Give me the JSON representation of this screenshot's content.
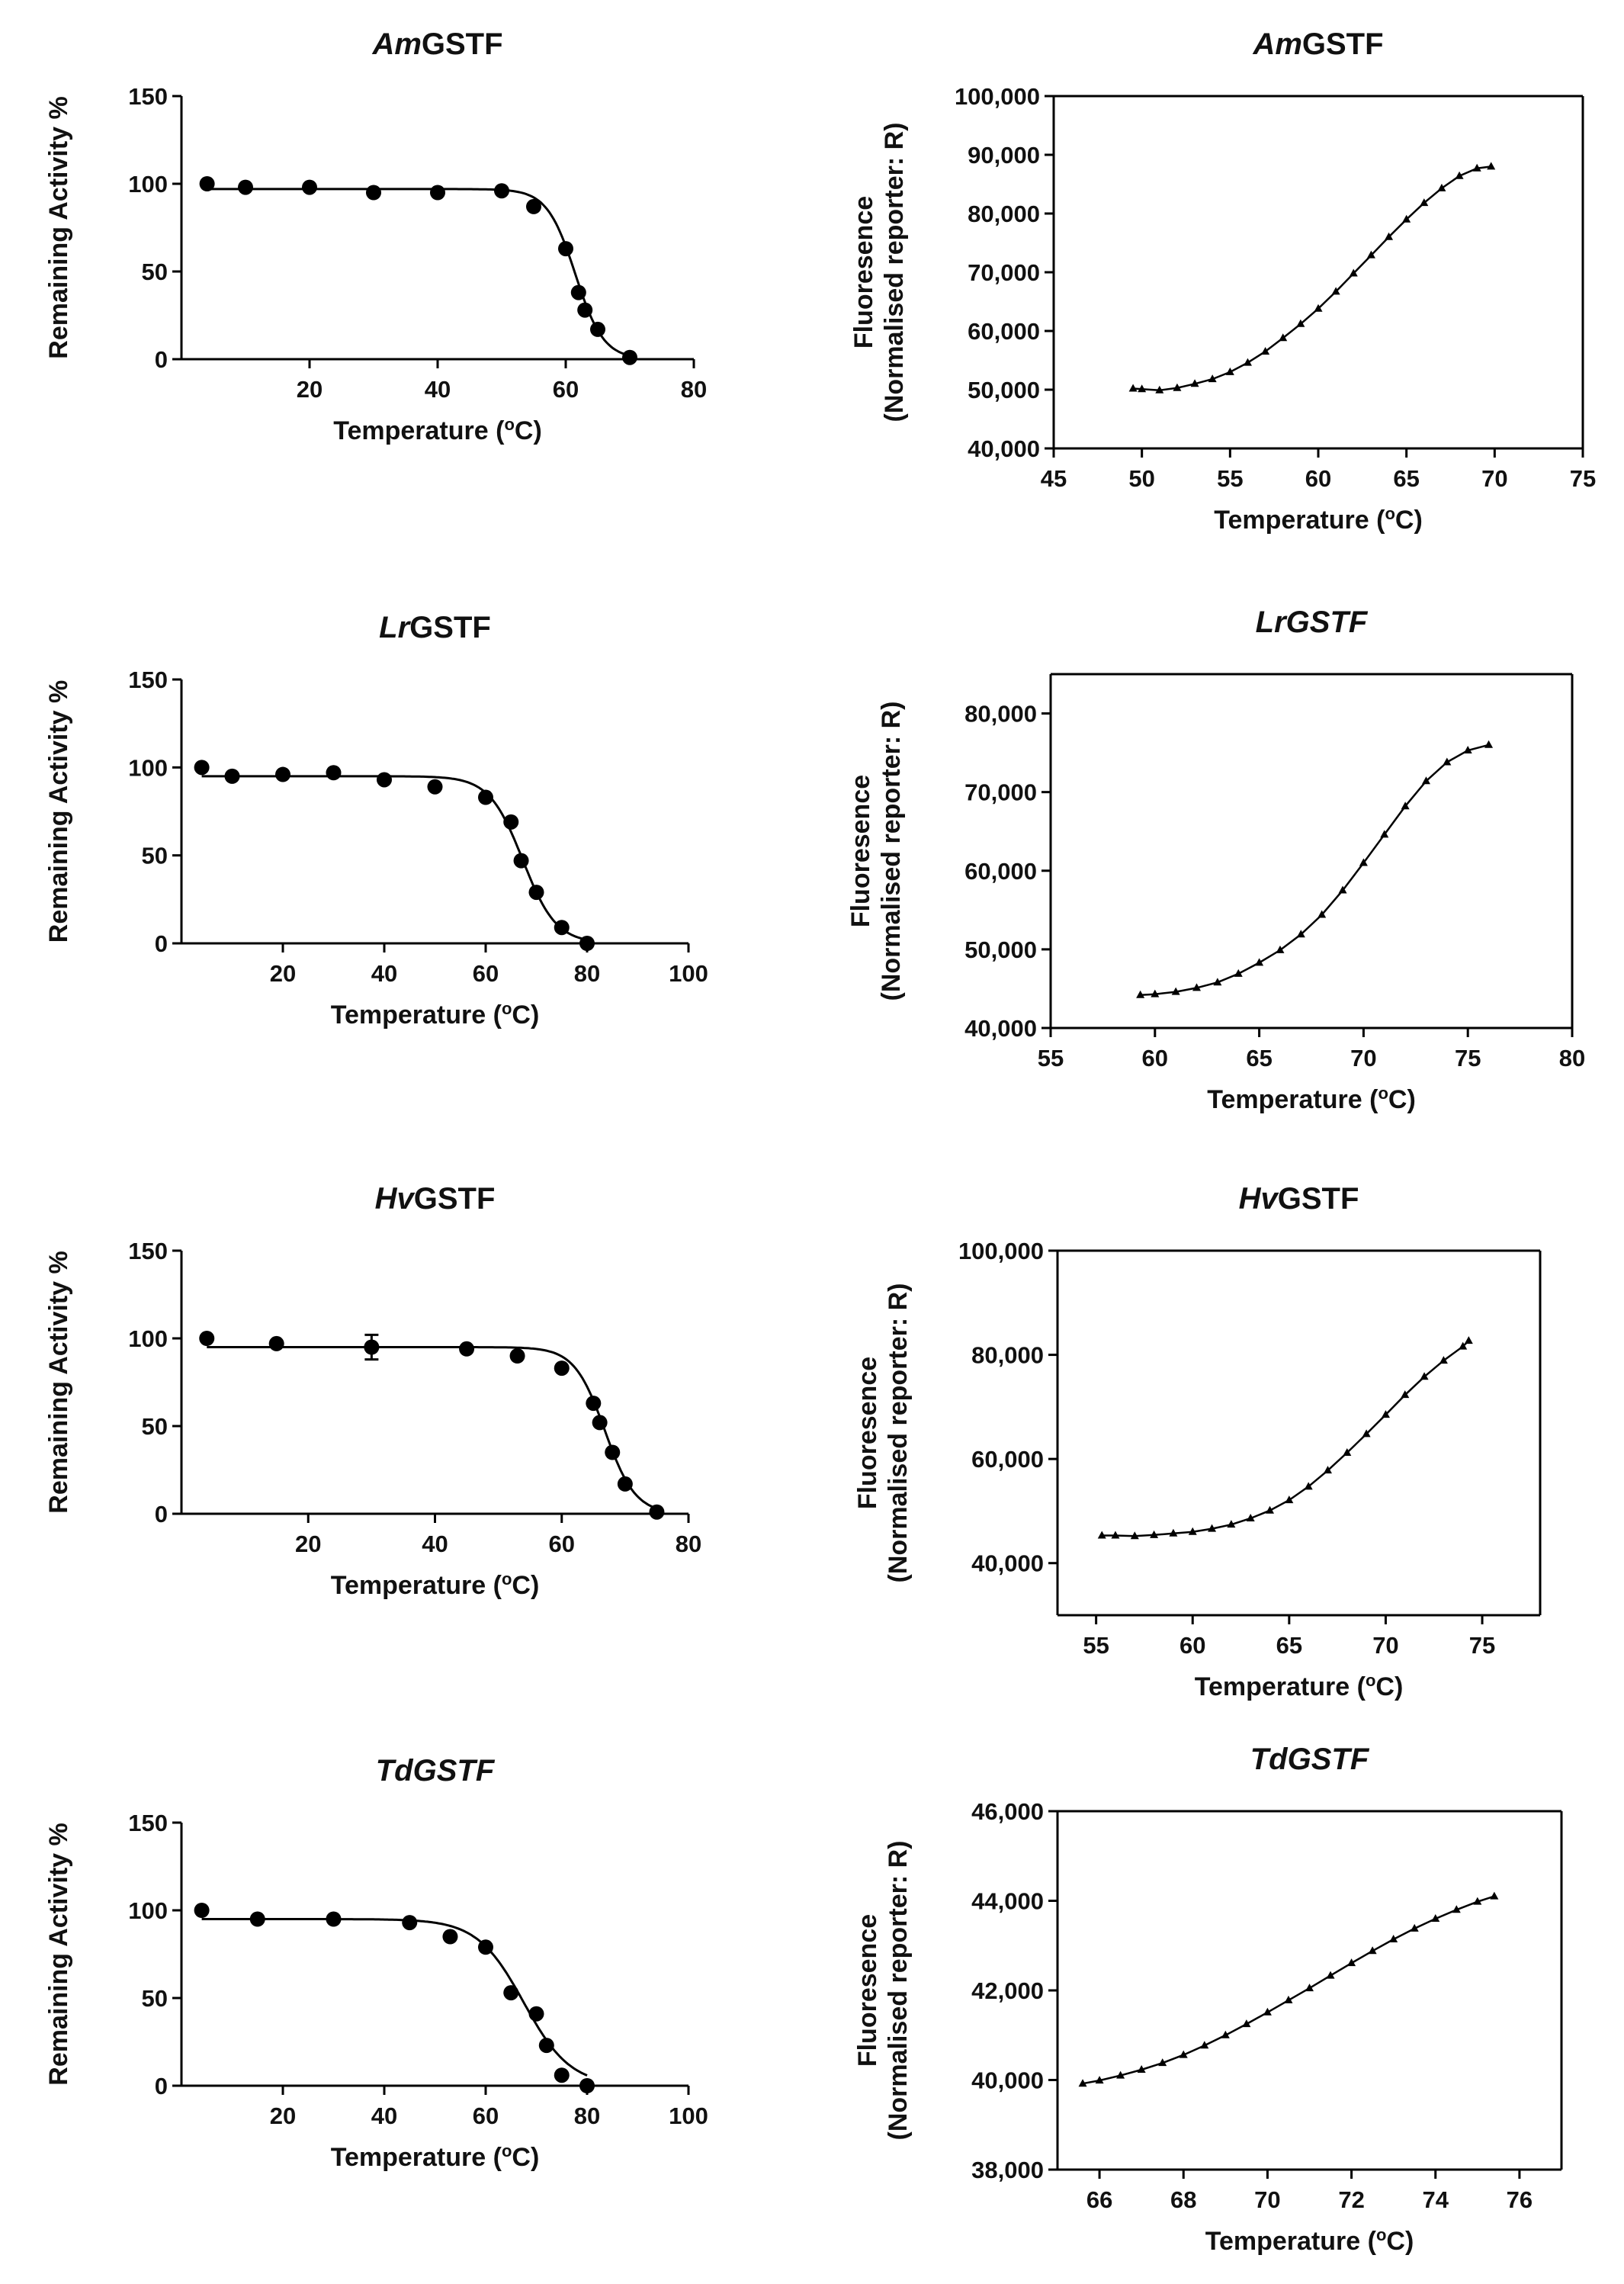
{
  "chart_data": [
    {
      "type": "scatter",
      "title": {
        "prefix": "Am",
        "suffix": "GSTF",
        "italic_suffix": false
      },
      "xlabel": "Temperature (°C)",
      "ylabel": "Remaining Activity %",
      "xlim": [
        0,
        80
      ],
      "ylim": [
        0,
        150
      ],
      "xticks": [
        20,
        40,
        60,
        80
      ],
      "yticks": [
        0,
        50,
        100,
        150
      ],
      "points": {
        "x": [
          4,
          10,
          20,
          30,
          40,
          50,
          55,
          60,
          62,
          63,
          65,
          70
        ],
        "y": [
          100,
          98,
          98,
          95,
          95,
          96,
          87,
          63,
          38,
          28,
          17,
          1
        ]
      },
      "fit": {
        "top": 97,
        "bottom": 0,
        "tm": 61.5,
        "slope": 2.2
      }
    },
    {
      "type": "line",
      "title": {
        "prefix": "Am",
        "suffix": "GSTF",
        "italic_suffix": false
      },
      "xlabel": "Temperature (°C)",
      "ylabel_lines": [
        "Fluoresence",
        "(Normalised reporter: R)"
      ],
      "xlim": [
        45,
        75
      ],
      "ylim": [
        40000,
        100000
      ],
      "xticks": [
        45,
        50,
        55,
        60,
        65,
        70,
        75
      ],
      "yticks": [
        40000,
        50000,
        60000,
        70000,
        80000,
        90000,
        100000
      ],
      "ytick_labels": [
        "40,000",
        "50,000",
        "60,000",
        "70,000",
        "80,000",
        "90,000",
        "100,000"
      ],
      "series": {
        "x": [
          49.5,
          50,
          51,
          52,
          53,
          54,
          55,
          56,
          57,
          58,
          59,
          60,
          61,
          62,
          63,
          64,
          65,
          66,
          67,
          68,
          69,
          69.8
        ],
        "y": [
          50200,
          50100,
          49900,
          50300,
          51000,
          51800,
          53000,
          54600,
          56500,
          58800,
          61200,
          63800,
          66700,
          69800,
          72900,
          76000,
          79000,
          81800,
          84300,
          86400,
          87700,
          88000
        ]
      }
    },
    {
      "type": "scatter",
      "title": {
        "prefix": "Lr",
        "suffix": "GSTF",
        "italic_suffix": false
      },
      "xlabel": "Temperature (°C)",
      "ylabel": "Remaining Activity %",
      "xlim": [
        0,
        100
      ],
      "ylim": [
        0,
        150
      ],
      "xticks": [
        20,
        40,
        60,
        80,
        100
      ],
      "yticks": [
        0,
        50,
        100,
        150
      ],
      "points": {
        "x": [
          4,
          10,
          20,
          30,
          40,
          50,
          60,
          65,
          67,
          70,
          75,
          80
        ],
        "y": [
          100,
          95,
          96,
          97,
          93,
          89,
          83,
          69,
          47,
          29,
          9,
          0
        ]
      },
      "fit": {
        "top": 95,
        "bottom": 0,
        "tm": 67.3,
        "slope": 3.3
      }
    },
    {
      "type": "line",
      "title": {
        "prefix": "Lr",
        "suffix": "GSTF",
        "italic_suffix": true
      },
      "xlabel": "Temperature (°C)",
      "ylabel_lines": [
        "Fluoresence",
        "(Normalised reporter: R)"
      ],
      "xlim": [
        55,
        80
      ],
      "ylim": [
        40000,
        85000
      ],
      "xticks": [
        55,
        60,
        65,
        70,
        75,
        80
      ],
      "yticks": [
        40000,
        50000,
        60000,
        70000,
        80000
      ],
      "ytick_labels": [
        "40,000",
        "50,000",
        "60,000",
        "70,000",
        "80,000"
      ],
      "series": {
        "x": [
          59.3,
          60,
          61,
          62,
          63,
          64,
          65,
          66,
          67,
          68,
          69,
          70,
          71,
          72,
          73,
          74,
          75,
          76
        ],
        "y": [
          44200,
          44300,
          44600,
          45100,
          45800,
          46900,
          48300,
          49900,
          51900,
          54400,
          57500,
          61000,
          64600,
          68200,
          71400,
          73800,
          75300,
          76000
        ]
      }
    },
    {
      "type": "scatter",
      "title": {
        "prefix": "Hv",
        "suffix": "GSTF",
        "italic_suffix": false
      },
      "xlabel": "Temperature (°C)",
      "ylabel": "Remaining Activity %",
      "xlim": [
        0,
        80
      ],
      "ylim": [
        0,
        150
      ],
      "xticks": [
        20,
        40,
        60,
        80
      ],
      "yticks": [
        0,
        50,
        100,
        150
      ],
      "points": {
        "x": [
          4,
          15,
          30,
          45,
          53,
          60,
          65,
          66,
          68,
          70,
          75
        ],
        "y": [
          100,
          97,
          95,
          94,
          90,
          83,
          63,
          52,
          35,
          17,
          1
        ]
      },
      "errors": [
        {
          "x": 30,
          "y": 95,
          "err": 7
        }
      ],
      "fit": {
        "top": 95,
        "bottom": 0,
        "tm": 66.8,
        "slope": 2.4
      }
    },
    {
      "type": "line",
      "title": {
        "prefix": "Hv",
        "suffix": "GSTF",
        "italic_suffix": false
      },
      "xlabel": "Temperature (°C)",
      "ylabel_lines": [
        "Fluoresence",
        "(Normalised reporter: R)"
      ],
      "xlim": [
        53,
        78
      ],
      "ylim": [
        30000,
        100000
      ],
      "xticks": [
        55,
        60,
        65,
        70,
        75
      ],
      "yticks": [
        40000,
        60000,
        80000,
        100000
      ],
      "ytick_labels": [
        "40,000",
        "60,000",
        "80,000",
        "100,000"
      ],
      "series": {
        "x": [
          55.3,
          56,
          57,
          58,
          59,
          60,
          61,
          62,
          63,
          64,
          65,
          66,
          67,
          68,
          69,
          70,
          71,
          72,
          73,
          74,
          74.3
        ],
        "y": [
          45300,
          45300,
          45200,
          45400,
          45700,
          46000,
          46600,
          47400,
          48600,
          50100,
          52100,
          54700,
          57800,
          61200,
          64800,
          68500,
          72300,
          75800,
          78900,
          81600,
          82700
        ]
      }
    },
    {
      "type": "scatter",
      "title": {
        "prefix": "Td",
        "suffix": "GSTF",
        "italic_suffix": true
      },
      "xlabel": "Temperature (°C)",
      "ylabel": "Remaining Activity %",
      "xlim": [
        0,
        100
      ],
      "ylim": [
        0,
        150
      ],
      "xticks": [
        20,
        40,
        60,
        80,
        100
      ],
      "yticks": [
        0,
        50,
        100,
        150
      ],
      "points": {
        "x": [
          4,
          15,
          30,
          45,
          53,
          60,
          65,
          70,
          72,
          75,
          80
        ],
        "y": [
          100,
          95,
          95,
          93,
          85,
          79,
          53,
          41,
          23,
          6,
          0
        ]
      },
      "fit": {
        "top": 95,
        "bottom": 0,
        "tm": 67.5,
        "slope": 4.6
      }
    },
    {
      "type": "line",
      "title": {
        "prefix": "Td",
        "suffix": "GSTF",
        "italic_suffix": true
      },
      "xlabel": "Temperature (°C)",
      "ylabel_lines": [
        "Fluoresence",
        "(Normalised reporter: R)"
      ],
      "xlim": [
        65,
        77
      ],
      "ylim": [
        38000,
        46000
      ],
      "xticks": [
        66,
        68,
        70,
        72,
        74,
        76
      ],
      "yticks": [
        38000,
        40000,
        42000,
        44000,
        46000
      ],
      "ytick_labels": [
        "38,000",
        "40,000",
        "42,000",
        "44,000",
        "46,000"
      ],
      "series": {
        "x": [
          65.6,
          66,
          66.5,
          67,
          67.5,
          68,
          68.5,
          69,
          69.5,
          70,
          70.5,
          71,
          71.5,
          72,
          72.5,
          73,
          73.5,
          74,
          74.5,
          75,
          75.4
        ],
        "y": [
          39920,
          39990,
          40100,
          40230,
          40380,
          40560,
          40770,
          41000,
          41250,
          41510,
          41780,
          42050,
          42330,
          42610,
          42880,
          43140,
          43380,
          43600,
          43800,
          43980,
          44100
        ]
      }
    }
  ]
}
